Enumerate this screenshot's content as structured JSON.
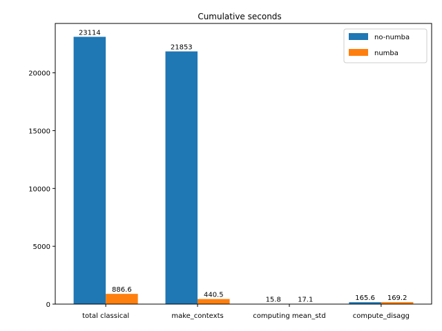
{
  "chart_data": {
    "type": "bar",
    "title": "Cumulative seconds",
    "xlabel": "",
    "ylabel": "",
    "categories": [
      "total classical",
      "make_contexts",
      "computing mean_std",
      "compute_disagg"
    ],
    "series": [
      {
        "name": "no-numba",
        "values": [
          23114,
          21853,
          15.8,
          165.6
        ],
        "labels": [
          "23114",
          "21853",
          "15.8",
          "165.6"
        ],
        "color": "#1f77b4"
      },
      {
        "name": "numba",
        "values": [
          886.6,
          440.5,
          17.1,
          169.2
        ],
        "labels": [
          "886.6",
          "440.5",
          "17.1",
          "169.2"
        ],
        "color": "#ff7f0e"
      }
    ],
    "yticks": [
      0,
      5000,
      10000,
      15000,
      20000
    ],
    "ylim": [
      0,
      24270
    ],
    "grid": false,
    "legend": "top-right"
  }
}
